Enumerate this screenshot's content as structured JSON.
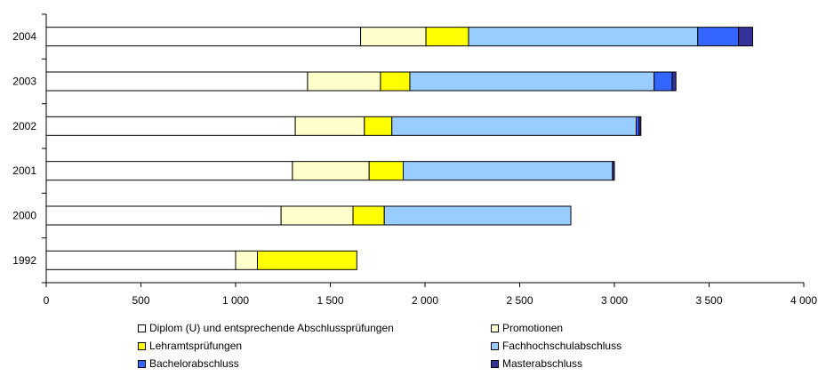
{
  "chart_data": {
    "type": "bar",
    "orientation": "horizontal",
    "stacked": true,
    "categories": [
      "2004",
      "2003",
      "2002",
      "2001",
      "2000",
      "1992"
    ],
    "series": [
      {
        "name": "Diplom (U) und entsprechende Abschlussprüfungen",
        "color": "#ffffff",
        "values": [
          1660,
          1380,
          1315,
          1300,
          1240,
          1000
        ]
      },
      {
        "name": "Promotionen",
        "color": "#ffffcc",
        "values": [
          345,
          385,
          365,
          405,
          380,
          115
        ]
      },
      {
        "name": "Lehramtsprüfungen",
        "color": "#ffff00",
        "values": [
          225,
          155,
          145,
          180,
          165,
          525
        ]
      },
      {
        "name": "Fachhochschulabschluss",
        "color": "#99ccff",
        "values": [
          1210,
          1290,
          1290,
          1105,
          985,
          0
        ]
      },
      {
        "name": "Bachelorabschluss",
        "color": "#3366ff",
        "values": [
          215,
          95,
          15,
          0,
          0,
          0
        ]
      },
      {
        "name": "Masterabschluss",
        "color": "#333399",
        "values": [
          75,
          20,
          10,
          10,
          0,
          0
        ]
      }
    ],
    "xlim": [
      0,
      4000
    ],
    "xticks": [
      0,
      500,
      1000,
      1500,
      2000,
      2500,
      3000,
      3500,
      4000
    ],
    "xtick_labels": [
      "0",
      "500",
      "1 000",
      "1 500",
      "2 000",
      "2 500",
      "3 000",
      "3 500",
      "4 000"
    ],
    "title": "",
    "xlabel": "",
    "ylabel": "",
    "grid": false,
    "legend_position": "bottom"
  }
}
